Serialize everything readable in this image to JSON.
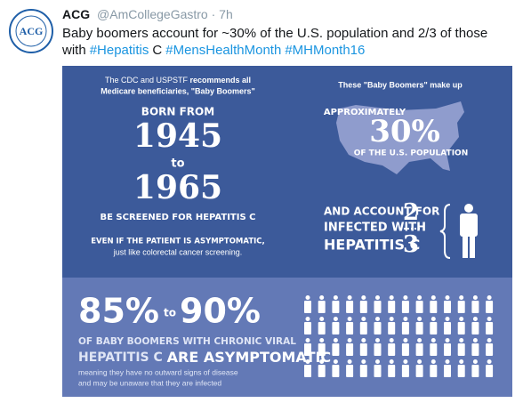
{
  "tweet": {
    "name": "ACG",
    "handle": "@AmCollegeGastro",
    "time": "· 7h",
    "avatar_text": "ACG",
    "parts": [
      {
        "text": "Baby boomers account for ~30% of the U.S. population and 2/3 of those with",
        "link": false
      },
      {
        "text": "#Hepatitis",
        "link": true
      },
      {
        "text": "C",
        "link": false
      },
      {
        "text": "#MensHealthMonth",
        "link": true
      },
      {
        "text": "#MHMonth16",
        "link": true
      }
    ]
  },
  "infographic": {
    "left": {
      "intro_1": "The CDC and USPSTF",
      "intro_1_bold": "recommends all",
      "intro_2": "Medicare beneficiaries, \"Baby Boomers\"",
      "born_from": "BORN FROM",
      "year_start": "1945",
      "to": "to",
      "year_end": "1965",
      "screened": "BE SCREENED FOR HEPATITIS C",
      "even_if": "EVEN IF THE PATIENT IS ASYMPTOMATIC,",
      "just_like": "just like colorectal cancer screening."
    },
    "right": {
      "intro": "These \"Baby Boomers\" make up",
      "approx": "APPROXIMATELY",
      "percent": "30%",
      "of_us": "OF THE U.S. POPULATION",
      "account_1": "AND ACCOUNT FOR",
      "account_2": "INFECTED WITH",
      "account_3": "HEPATITIS C",
      "numerator": "2",
      "denominator": "3"
    },
    "bottom": {
      "low": "85%",
      "to": "to",
      "high": "90%",
      "line_1": "OF BABY BOOMERS WITH CHRONIC VIRAL",
      "line_2a": "HEPATITIS C",
      "line_2b": "ARE ASYMPTOMATIC",
      "line_3": "meaning they have no outward signs of disease",
      "line_4": "and may be unaware that they are infected"
    }
  }
}
